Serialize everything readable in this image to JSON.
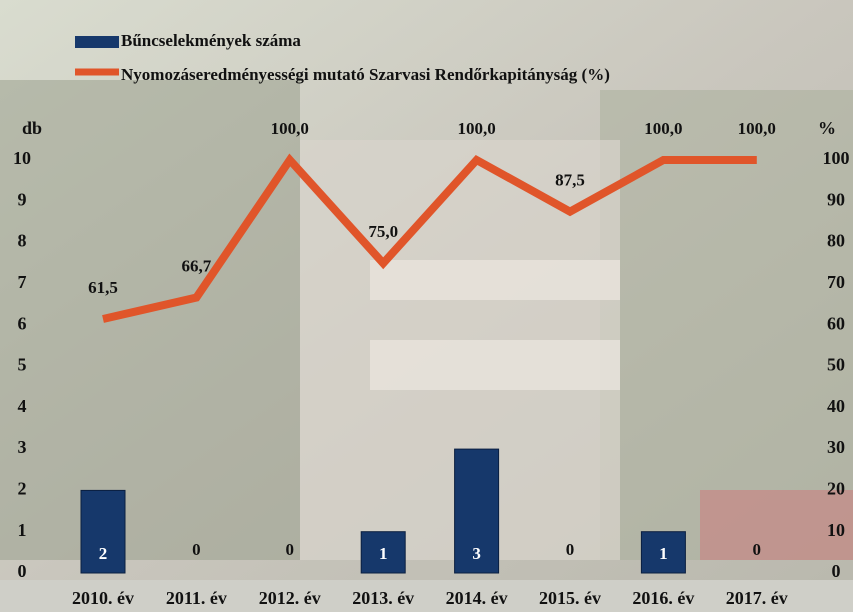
{
  "chart_data": {
    "type": "bar+line",
    "categories": [
      "2010. év",
      "2011. év",
      "2012. év",
      "2013. év",
      "2014. év",
      "2015. év",
      "2016. év",
      "2017. év"
    ],
    "ylabel": "db",
    "y2label": "%",
    "ylim": [
      0,
      10
    ],
    "yticks": [
      0,
      1,
      2,
      3,
      4,
      5,
      6,
      7,
      8,
      9,
      10
    ],
    "y2lim": [
      0,
      100
    ],
    "y2ticks": [
      0,
      10,
      20,
      30,
      40,
      50,
      60,
      70,
      80,
      90,
      100
    ],
    "legend": "top-left",
    "series": [
      {
        "name": "Bűncselekmények száma",
        "type": "bar",
        "color": "#16386b",
        "axis": "y",
        "values": [
          2,
          0,
          0,
          1,
          3,
          0,
          1,
          0
        ]
      },
      {
        "name": "Nyomozáseredményességi mutató Szarvasi Rendőrkapitányság (%)",
        "type": "line",
        "color": "#e0552a",
        "axis": "y2",
        "values": [
          61.5,
          66.7,
          100,
          75,
          100,
          87.5,
          100,
          100
        ],
        "value_labels": [
          "61,5",
          "66,7",
          "100,0",
          "75,0",
          "100,0",
          "87,5",
          "100,0",
          "100,0"
        ]
      }
    ]
  }
}
